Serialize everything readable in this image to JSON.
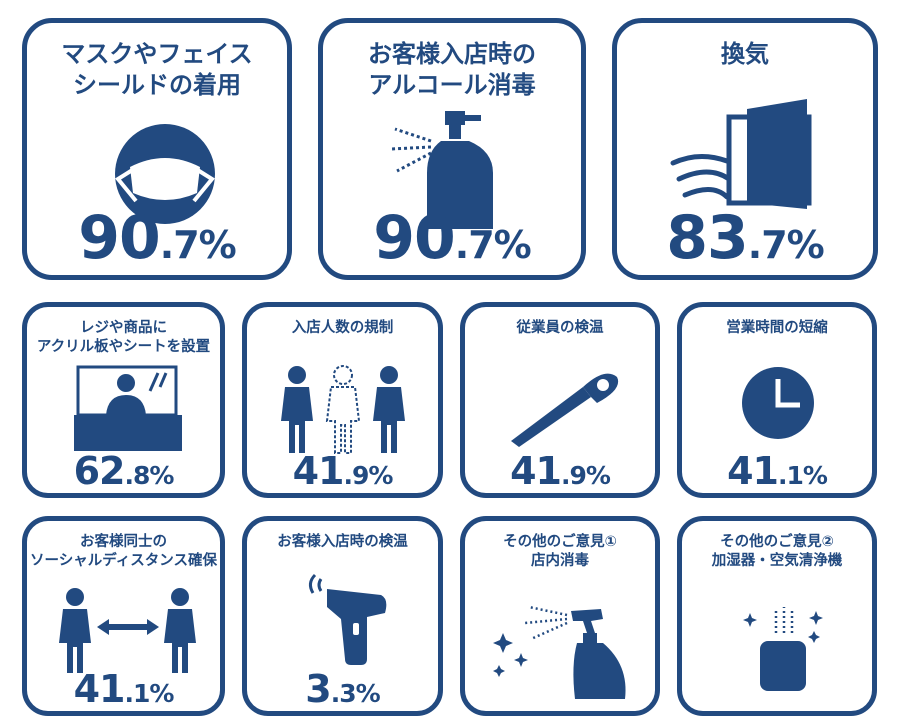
{
  "cards": [
    {
      "label": "マスクやフェイス\nシールドの着用",
      "value_int": "90",
      "value_dec": ".7%",
      "icon": "mask-icon"
    },
    {
      "label": "お客様入店時の\nアルコール消毒",
      "value_int": "90",
      "value_dec": ".7%",
      "icon": "sanitizer-spray-icon"
    },
    {
      "label": "換気",
      "value_int": "83",
      "value_dec": ".7%",
      "icon": "ventilation-window-icon"
    },
    {
      "label": "レジや商品に\nアクリル板やシートを設置",
      "value_int": "62",
      "value_dec": ".8%",
      "icon": "acrylic-partition-icon"
    },
    {
      "label": "入店人数の規制",
      "value_int": "41",
      "value_dec": ".9%",
      "icon": "people-limit-icon"
    },
    {
      "label": "従業員の検温",
      "value_int": "41",
      "value_dec": ".9%",
      "icon": "thermometer-icon"
    },
    {
      "label": "営業時間の短縮",
      "value_int": "41",
      "value_dec": ".1%",
      "icon": "clock-icon"
    },
    {
      "label": "お客様同士の\nソーシャルディスタンス確保",
      "value_int": "41",
      "value_dec": ".1%",
      "icon": "social-distance-icon"
    },
    {
      "label": "お客様入店時の検温",
      "value_int": "3",
      "value_dec": ".3%",
      "icon": "infrared-thermometer-icon"
    },
    {
      "label": "その他のご意見①\n店内消毒",
      "value_int": "",
      "value_dec": "",
      "icon": "spray-bottle-icon"
    },
    {
      "label": "その他のご意見②\n加湿器・空気清浄機",
      "value_int": "",
      "value_dec": "",
      "icon": "humidifier-icon"
    }
  ],
  "colors": {
    "primary": "#224a80",
    "background": "#ffffff"
  }
}
